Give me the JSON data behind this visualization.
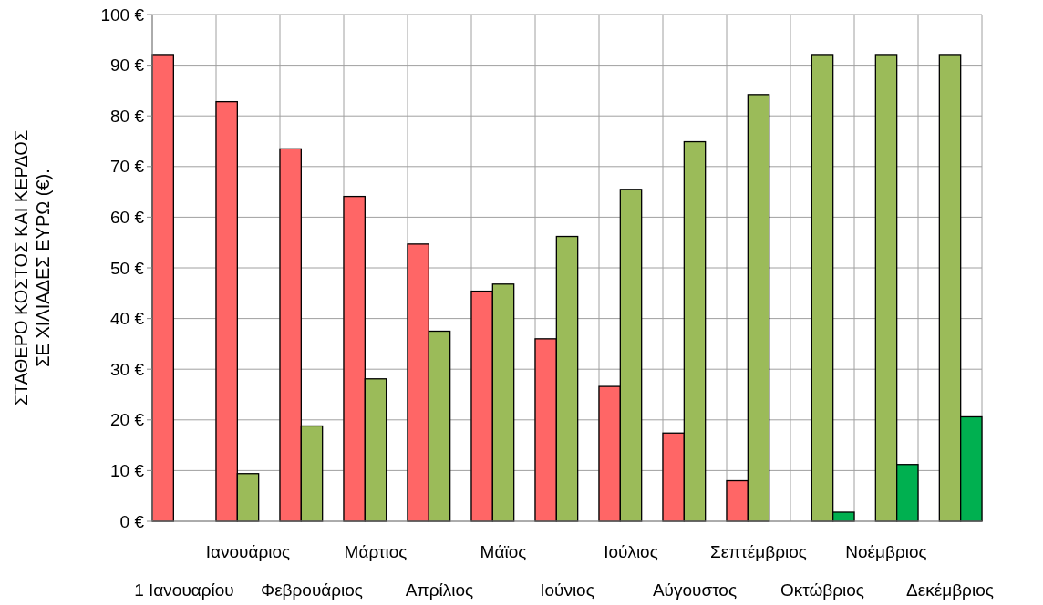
{
  "chart_data": {
    "type": "bar",
    "ylabel": "ΣΤΑΘΕΡΟ ΚΟΣΤΟΣ ΚΑΙ ΚΕΡΔΟΣ\nΣΕ ΧΙΛΙΑΔΕΣ  ΕΥΡΩ (€).",
    "categories": [
      "1 Ιανουαρίου",
      "Ιανουάριος",
      "Φεβρουάριος",
      "Μάρτιος",
      "Απρίλιος",
      "Μάϊος",
      "Ιούνιος",
      "Ιούλιος",
      "Αύγουστος",
      "Σεπτέμβριος",
      "Οκτώβριος",
      "Νοέμβριος",
      "Δεκέμβριος"
    ],
    "series": [
      {
        "color": "#ff6666",
        "values": [
          92.1,
          82.8,
          73.5,
          64.1,
          54.7,
          45.4,
          36.0,
          26.6,
          17.4,
          8.0,
          null,
          null,
          null
        ]
      },
      {
        "color": "#9bbb59",
        "values": [
          null,
          9.4,
          18.8,
          28.1,
          37.5,
          46.8,
          56.2,
          65.5,
          74.9,
          84.2,
          92.1,
          92.1,
          92.1
        ]
      },
      {
        "color": "#00b050",
        "values": [
          null,
          null,
          null,
          null,
          null,
          null,
          null,
          null,
          null,
          null,
          1.8,
          11.2,
          20.6
        ]
      }
    ],
    "ylim": [
      0,
      100
    ],
    "yticks": [
      {
        "value": 0,
        "label": "0 €"
      },
      {
        "value": 10,
        "label": "10 €"
      },
      {
        "value": 20,
        "label": "20 €"
      },
      {
        "value": 30,
        "label": "30 €"
      },
      {
        "value": 40,
        "label": "40 €"
      },
      {
        "value": 50,
        "label": "50 €"
      },
      {
        "value": 60,
        "label": "60 €"
      },
      {
        "value": 70,
        "label": "70 €"
      },
      {
        "value": 80,
        "label": "80 €"
      },
      {
        "value": 90,
        "label": "90 €"
      },
      {
        "value": 100,
        "label": "100 €"
      }
    ],
    "grid": true
  }
}
